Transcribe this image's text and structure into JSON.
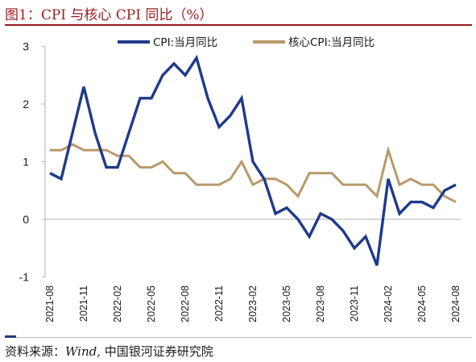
{
  "figure": {
    "title": "图1：CPI 与核心 CPI 同比（%）",
    "source_prefix": "资料来源：",
    "source_wind": "Wind,",
    "source_suffix": "  中国银河证券研究院"
  },
  "chart_data": {
    "type": "line",
    "title": "",
    "xlabel": "",
    "ylabel": "",
    "ylim": [
      -1,
      3
    ],
    "yticks": [
      -1,
      0,
      1,
      2,
      3
    ],
    "grid": false,
    "legend_position": "top",
    "x": [
      "2021-08",
      "2021-09",
      "2021-10",
      "2021-11",
      "2021-12",
      "2022-01",
      "2022-02",
      "2022-03",
      "2022-04",
      "2022-05",
      "2022-06",
      "2022-07",
      "2022-08",
      "2022-09",
      "2022-10",
      "2022-11",
      "2022-12",
      "2023-01",
      "2023-02",
      "2023-03",
      "2023-04",
      "2023-05",
      "2023-06",
      "2023-07",
      "2023-08",
      "2023-09",
      "2023-10",
      "2023-11",
      "2023-12",
      "2024-01",
      "2024-02",
      "2024-03",
      "2024-04",
      "2024-05",
      "2024-06",
      "2024-07",
      "2024-08"
    ],
    "xticks": [
      "2021-08",
      "2021-11",
      "2022-02",
      "2022-05",
      "2022-08",
      "2022-11",
      "2023-02",
      "2023-05",
      "2023-08",
      "2023-11",
      "2024-02",
      "2024-05",
      "2024-08"
    ],
    "series": [
      {
        "name": "CPI:当月同比",
        "color": "#1f3a8a",
        "values": [
          0.8,
          0.7,
          1.5,
          2.3,
          1.5,
          0.9,
          0.9,
          1.5,
          2.1,
          2.1,
          2.5,
          2.7,
          2.5,
          2.8,
          2.1,
          1.6,
          1.8,
          2.1,
          1.0,
          0.7,
          0.1,
          0.2,
          0.0,
          -0.3,
          0.1,
          0.0,
          -0.2,
          -0.5,
          -0.3,
          -0.8,
          0.7,
          0.1,
          0.3,
          0.3,
          0.2,
          0.5,
          0.6
        ]
      },
      {
        "name": "核心CPI:当月同比",
        "color": "#b9996b",
        "values": [
          1.2,
          1.2,
          1.3,
          1.2,
          1.2,
          1.2,
          1.1,
          1.1,
          0.9,
          0.9,
          1.0,
          0.8,
          0.8,
          0.6,
          0.6,
          0.6,
          0.7,
          1.0,
          0.6,
          0.7,
          0.7,
          0.6,
          0.4,
          0.8,
          0.8,
          0.8,
          0.6,
          0.6,
          0.6,
          0.4,
          1.2,
          0.6,
          0.7,
          0.6,
          0.6,
          0.4,
          0.3
        ]
      }
    ]
  }
}
